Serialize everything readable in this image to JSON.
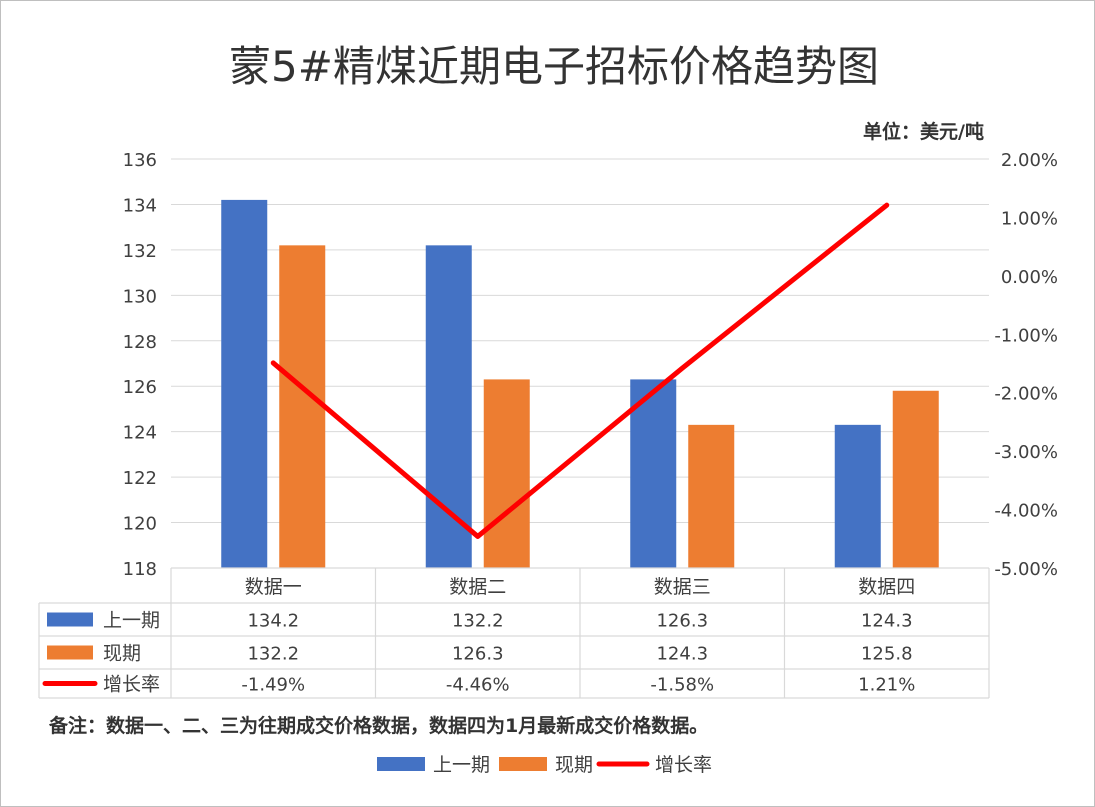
{
  "chart_data": {
    "type": "bar",
    "title": "蒙5#精煤近期电子招标价格趋势图",
    "unit": "单位：美元/吨",
    "categories": [
      "数据一",
      "数据二",
      "数据三",
      "数据四"
    ],
    "series": [
      {
        "name": "上一期",
        "type": "bar",
        "axis": "left",
        "color": "#4472C4",
        "values": [
          134.2,
          132.2,
          126.3,
          124.3
        ],
        "labels": [
          "134.2",
          "132.2",
          "126.3",
          "124.3"
        ]
      },
      {
        "name": "现期",
        "type": "bar",
        "axis": "left",
        "color": "#ED7D31",
        "values": [
          132.2,
          126.3,
          124.3,
          125.8
        ],
        "labels": [
          "132.2",
          "126.3",
          "124.3",
          "125.8"
        ]
      },
      {
        "name": "增长率",
        "type": "line",
        "axis": "right",
        "color": "#FF0000",
        "values": [
          -1.49,
          -4.46,
          -1.58,
          1.21
        ],
        "labels": [
          "-1.49%",
          "-4.46%",
          "-1.58%",
          "1.21%"
        ]
      }
    ],
    "y_left": {
      "min": 118,
      "max": 136,
      "step": 2,
      "ticks": [
        "118",
        "120",
        "122",
        "124",
        "126",
        "128",
        "130",
        "132",
        "134",
        "136"
      ]
    },
    "y_right": {
      "min": -5,
      "max": 2,
      "step": 1,
      "ticks": [
        "-5.00%",
        "-4.00%",
        "-3.00%",
        "-2.00%",
        "-1.00%",
        "0.00%",
        "1.00%",
        "2.00%"
      ]
    },
    "grid": true,
    "data_table": true,
    "legend_position": "bottom",
    "note": "备注：数据一、二、三为往期成交价格数据，数据四为1月最新成交价格数据。"
  }
}
